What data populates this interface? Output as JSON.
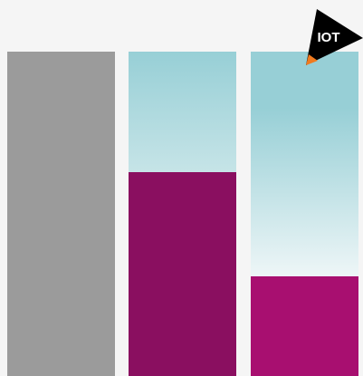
{
  "badge": {
    "label": "IOT"
  }
}
